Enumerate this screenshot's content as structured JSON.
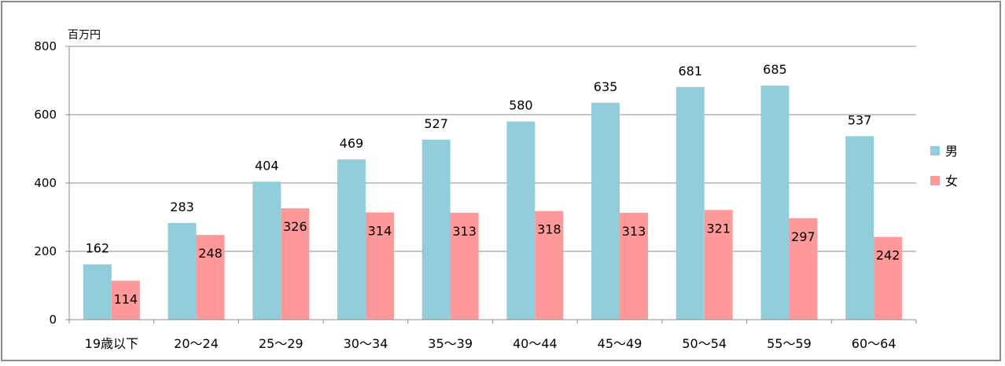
{
  "chart_data": {
    "type": "bar",
    "title": "",
    "unit_label": "百万円",
    "xlabel": "",
    "ylabel": "",
    "ylim": [
      0,
      800
    ],
    "yticks": [
      0,
      200,
      400,
      600,
      800
    ],
    "grid": true,
    "legend_position": "right",
    "categories": [
      "19歳以下",
      "20～24",
      "25～29",
      "30～34",
      "35～39",
      "40～44",
      "45～49",
      "50～54",
      "55～59",
      "60～64"
    ],
    "series": [
      {
        "name": "男",
        "color": "#92cddc",
        "values": [
          162,
          283,
          404,
          469,
          527,
          580,
          635,
          681,
          685,
          537
        ]
      },
      {
        "name": "女",
        "color": "#ff9999",
        "values": [
          114,
          248,
          326,
          314,
          313,
          318,
          313,
          321,
          297,
          242
        ]
      }
    ]
  }
}
